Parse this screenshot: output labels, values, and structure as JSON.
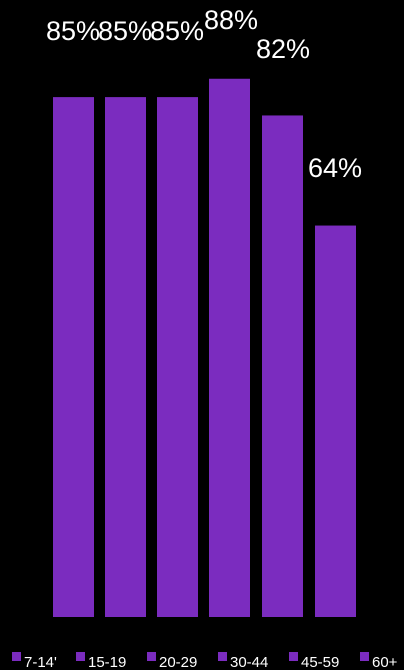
{
  "chart_data": {
    "type": "bar",
    "categories": [
      "7-14'",
      "15-19",
      "20-29",
      "30-44",
      "45-59",
      "60+"
    ],
    "series": [
      {
        "values": [
          85,
          85,
          85,
          88,
          82,
          64
        ]
      }
    ],
    "data_labels": [
      "85%",
      "85%",
      "85%",
      "88%",
      "82%",
      "64%"
    ],
    "legend": {
      "entries": [
        "7-14'",
        "15-19",
        "20-29",
        "30-44",
        "45-59",
        "60+"
      ],
      "placement": "bottom"
    },
    "ylim": [
      0,
      94.5
    ],
    "grid": false,
    "colors": {
      "bar": "#7b2cbf",
      "background": "#000000",
      "text": "#ffffff"
    }
  }
}
